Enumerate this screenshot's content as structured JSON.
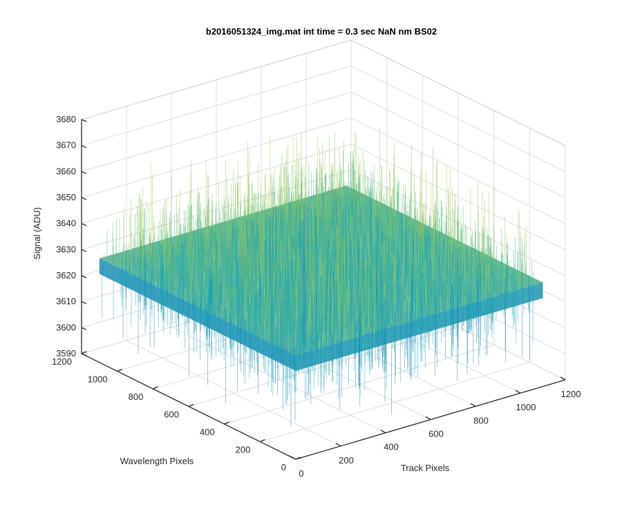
{
  "chart_data": {
    "type": "surface",
    "title": "b2016051324_img.mat int time = 0.3 sec  NaN nm BS02",
    "xlabel": "Track Pixels",
    "ylabel": "Wavelength Pixels",
    "zlabel": "Signal (ADU)",
    "xlim": [
      0,
      1200
    ],
    "ylim": [
      0,
      1200
    ],
    "zlim": [
      3590,
      3680
    ],
    "x_ticks": [
      "0",
      "200",
      "400",
      "600",
      "800",
      "1000",
      "1200"
    ],
    "y_ticks": [
      "0",
      "200",
      "400",
      "600",
      "800",
      "1000",
      "1200"
    ],
    "z_ticks": [
      "3590",
      "3600",
      "3610",
      "3620",
      "3630",
      "3640",
      "3650",
      "3660",
      "3670",
      "3680"
    ],
    "data_extent": {
      "x": [
        0,
        1100
      ],
      "y": [
        0,
        1100
      ]
    },
    "mean_signal": 3630,
    "noise_range": [
      3595,
      3675
    ],
    "grid": true,
    "colormap": [
      "#1f7fbf",
      "#1aa3b5",
      "#3fb58f",
      "#8fc45a",
      "#c9c23a"
    ]
  }
}
